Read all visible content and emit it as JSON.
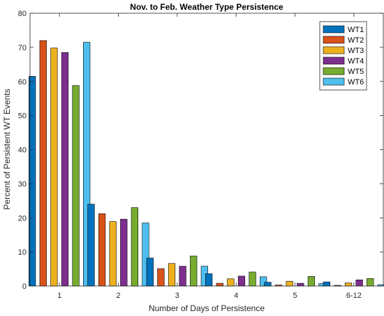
{
  "chart_data": {
    "type": "bar",
    "title": "Nov. to Feb. Weather Type Persistence",
    "xlabel": "Number of Days of Persistence",
    "ylabel": "Percent of Persistent WT Events",
    "categories": [
      "1",
      "2",
      "3",
      "4",
      "5",
      "6-12"
    ],
    "ylim": [
      0,
      80
    ],
    "yticks": [
      "0",
      "10",
      "20",
      "30",
      "40",
      "50",
      "60",
      "70",
      "80"
    ],
    "grid": false,
    "legend_position": "top-right",
    "series": [
      {
        "name": "WT1",
        "color": "#0072BD",
        "values": [
          61.5,
          24.0,
          8.2,
          3.6,
          1.1,
          1.2
        ]
      },
      {
        "name": "WT2",
        "color": "#D95319",
        "values": [
          72.0,
          21.2,
          5.1,
          0.8,
          0.3,
          0.2
        ]
      },
      {
        "name": "WT3",
        "color": "#EDB120",
        "values": [
          69.8,
          18.9,
          6.6,
          2.1,
          1.4,
          0.9
        ]
      },
      {
        "name": "WT4",
        "color": "#7E2F8E",
        "values": [
          68.5,
          19.6,
          5.8,
          2.9,
          0.8,
          1.8
        ]
      },
      {
        "name": "WT5",
        "color": "#77AC30",
        "values": [
          58.8,
          23.0,
          8.8,
          4.1,
          2.8,
          2.2
        ]
      },
      {
        "name": "WT6",
        "color": "#4DBEEE",
        "values": [
          71.5,
          18.5,
          5.8,
          2.7,
          0.7,
          0.4
        ]
      }
    ]
  }
}
